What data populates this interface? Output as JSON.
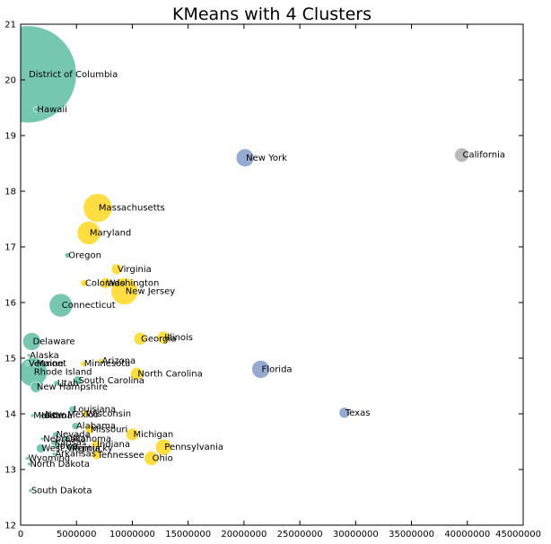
{
  "chart_data": {
    "type": "scatter",
    "title": "KMeans with 4 Clusters",
    "xlabel": "",
    "ylabel": "",
    "xlim": [
      0,
      45000000
    ],
    "ylim": [
      12,
      21
    ],
    "xticks": [
      0,
      5000000,
      10000000,
      15000000,
      20000000,
      25000000,
      30000000,
      35000000,
      40000000,
      45000000
    ],
    "yticks": [
      12,
      13,
      14,
      15,
      16,
      17,
      18,
      19,
      20,
      21
    ],
    "grid": false,
    "colors": {
      "green": "#66c2a5",
      "yellow": "#ffd92f",
      "blue": "#8da0cb",
      "gray": "#b3b3b3"
    },
    "points": [
      {
        "label": "District of Columbia",
        "x": 650000,
        "y": 20.1,
        "r": 54,
        "color": "green"
      },
      {
        "label": "Hawaii",
        "x": 1400000,
        "y": 19.47,
        "r": 3,
        "color": "green"
      },
      {
        "label": "New York",
        "x": 20100000,
        "y": 18.6,
        "r": 10,
        "color": "blue"
      },
      {
        "label": "California",
        "x": 39500000,
        "y": 18.65,
        "r": 8,
        "color": "gray"
      },
      {
        "label": "Massachusetts",
        "x": 6900000,
        "y": 17.7,
        "r": 16,
        "color": "yellow"
      },
      {
        "label": "Maryland",
        "x": 6100000,
        "y": 17.25,
        "r": 13,
        "color": "yellow"
      },
      {
        "label": "Oregon",
        "x": 4200000,
        "y": 16.85,
        "r": 3,
        "color": "green"
      },
      {
        "label": "Virginia",
        "x": 8600000,
        "y": 16.6,
        "r": 6,
        "color": "yellow"
      },
      {
        "label": "Colorado",
        "x": 5700000,
        "y": 16.35,
        "r": 4,
        "color": "yellow"
      },
      {
        "label": "Washington",
        "x": 7600000,
        "y": 16.35,
        "r": 6,
        "color": "yellow"
      },
      {
        "label": "New Jersey",
        "x": 9300000,
        "y": 16.2,
        "r": 15,
        "color": "yellow"
      },
      {
        "label": "Connecticut",
        "x": 3600000,
        "y": 15.95,
        "r": 13,
        "color": "green"
      },
      {
        "label": "Delaware",
        "x": 1000000,
        "y": 15.3,
        "r": 10,
        "color": "green"
      },
      {
        "label": "Georgia",
        "x": 10700000,
        "y": 15.35,
        "r": 7,
        "color": "yellow"
      },
      {
        "label": "Illinois",
        "x": 12800000,
        "y": 15.37,
        "r": 7,
        "color": "yellow"
      },
      {
        "label": "Alaska",
        "x": 730000,
        "y": 15.05,
        "r": 2,
        "color": "green"
      },
      {
        "label": "Vermont",
        "x": 630000,
        "y": 14.9,
        "r": 2,
        "color": "green"
      },
      {
        "label": "Maine",
        "x": 1350000,
        "y": 14.9,
        "r": 3,
        "color": "green"
      },
      {
        "label": "Rhode Island",
        "x": 1100000,
        "y": 14.75,
        "r": 16,
        "color": "green"
      },
      {
        "label": "Minnesota",
        "x": 5600000,
        "y": 14.9,
        "r": 3,
        "color": "yellow"
      },
      {
        "label": "Arizona",
        "x": 7200000,
        "y": 14.95,
        "r": 3,
        "color": "yellow"
      },
      {
        "label": "North Carolina",
        "x": 10400000,
        "y": 14.72,
        "r": 7,
        "color": "yellow"
      },
      {
        "label": "Florida",
        "x": 21500000,
        "y": 14.8,
        "r": 10,
        "color": "blue"
      },
      {
        "label": "Utah",
        "x": 3200000,
        "y": 14.55,
        "r": 3,
        "color": "green"
      },
      {
        "label": "South Carolina",
        "x": 5100000,
        "y": 14.6,
        "r": 5,
        "color": "green"
      },
      {
        "label": "New Hampshire",
        "x": 1360000,
        "y": 14.48,
        "r": 6,
        "color": "green"
      },
      {
        "label": "Louisiana",
        "x": 4650000,
        "y": 14.08,
        "r": 4,
        "color": "green"
      },
      {
        "label": "New Mexico",
        "x": 2100000,
        "y": 13.98,
        "r": 2,
        "color": "green"
      },
      {
        "label": "Montana",
        "x": 1060000,
        "y": 13.97,
        "r": 2,
        "color": "green"
      },
      {
        "label": "Idaho",
        "x": 1780000,
        "y": 13.97,
        "r": 2,
        "color": "green"
      },
      {
        "label": "Wisconsin",
        "x": 5800000,
        "y": 14.0,
        "r": 4,
        "color": "yellow"
      },
      {
        "label": "Texas",
        "x": 29000000,
        "y": 14.02,
        "r": 6,
        "color": "blue"
      },
      {
        "label": "Alabama",
        "x": 4900000,
        "y": 13.78,
        "r": 4,
        "color": "green"
      },
      {
        "label": "Missouri",
        "x": 6200000,
        "y": 13.72,
        "r": 5,
        "color": "yellow"
      },
      {
        "label": "Michigan",
        "x": 10000000,
        "y": 13.63,
        "r": 7,
        "color": "yellow"
      },
      {
        "label": "Nevada",
        "x": 3100000,
        "y": 13.63,
        "r": 3,
        "color": "green"
      },
      {
        "label": "Oklahoma",
        "x": 3950000,
        "y": 13.55,
        "r": 3,
        "color": "green"
      },
      {
        "label": "Nebraska",
        "x": 1950000,
        "y": 13.55,
        "r": 2,
        "color": "green"
      },
      {
        "label": "Kansas",
        "x": 2950000,
        "y": 13.48,
        "r": 3,
        "color": "green"
      },
      {
        "label": "Indiana",
        "x": 6750000,
        "y": 13.45,
        "r": 5,
        "color": "yellow"
      },
      {
        "label": "Iowa",
        "x": 3200000,
        "y": 13.42,
        "r": 3,
        "color": "green"
      },
      {
        "label": "Pennsylvania",
        "x": 12800000,
        "y": 13.4,
        "r": 9,
        "color": "yellow"
      },
      {
        "label": "West Virginia",
        "x": 1800000,
        "y": 13.38,
        "r": 5,
        "color": "green"
      },
      {
        "label": "Kentucky",
        "x": 4500000,
        "y": 13.38,
        "r": 3,
        "color": "green"
      },
      {
        "label": "Arkansas",
        "x": 3000000,
        "y": 13.28,
        "r": 2,
        "color": "green"
      },
      {
        "label": "Tennessee",
        "x": 6800000,
        "y": 13.26,
        "r": 5,
        "color": "yellow"
      },
      {
        "label": "Wyoming",
        "x": 580000,
        "y": 13.2,
        "r": 2,
        "color": "green"
      },
      {
        "label": "Ohio",
        "x": 11700000,
        "y": 13.2,
        "r": 8,
        "color": "yellow"
      },
      {
        "label": "North Dakota",
        "x": 760000,
        "y": 13.1,
        "r": 2,
        "color": "green"
      },
      {
        "label": "South Dakota",
        "x": 870000,
        "y": 12.62,
        "r": 2,
        "color": "green"
      }
    ]
  }
}
